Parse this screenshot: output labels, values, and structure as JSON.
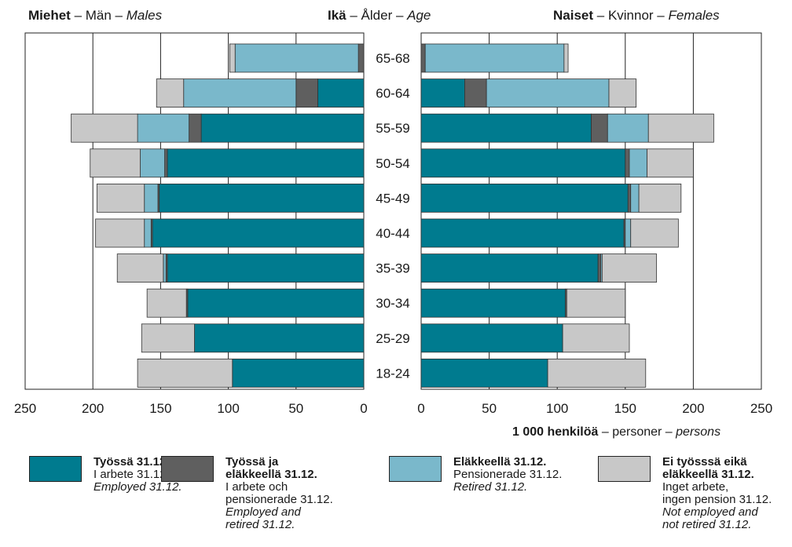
{
  "headers": {
    "left": {
      "bold": "Miehet",
      "sep1": " – ",
      "normal": "Män",
      "sep2": " – ",
      "italic": "Males"
    },
    "center": {
      "bold": "Ikä",
      "sep1": " – ",
      "normal": "Ålder",
      "sep2": " – ",
      "italic": "Age"
    },
    "right": {
      "bold": "Naiset",
      "sep1": " – ",
      "normal": "Kvinnor",
      "sep2": " – ",
      "italic": "Females"
    }
  },
  "unit_label": {
    "bold": "1 000 henkilöä",
    "sep1": " – ",
    "normal": "personer",
    "sep2": " – ",
    "italic": "persons"
  },
  "legend": [
    {
      "color": "#007b8f",
      "bold": [
        "Työssä 31.12."
      ],
      "normal": [
        "I arbete 31.12."
      ],
      "italic": [
        "Employed 31.12."
      ]
    },
    {
      "color": "#5f5f5f",
      "bold": [
        "Työssä ja",
        "eläkkeellä 31.12."
      ],
      "normal": [
        "I arbete och",
        "pensionerade 31.12."
      ],
      "italic": [
        "Employed and",
        "retired 31.12."
      ]
    },
    {
      "color": "#7ab8cb",
      "bold": [
        "Eläkkeellä 31.12."
      ],
      "normal": [
        "Pensionerade 31.12."
      ],
      "italic": [
        "Retired 31.12."
      ]
    },
    {
      "color": "#c8c8c8",
      "bold": [
        "Ei työsssä eikä",
        "eläkkeellä 31.12."
      ],
      "normal": [
        "Inget arbete,",
        "ingen pension 31.12."
      ],
      "italic": [
        "Not employed and",
        "not retired 31.12."
      ]
    }
  ],
  "chart_data": {
    "type": "bar",
    "orientation": "horizontal-population-pyramid",
    "categories": [
      "65-68",
      "60-64",
      "55-59",
      "50-54",
      "45-49",
      "40-44",
      "35-39",
      "30-34",
      "25-29",
      "18-24"
    ],
    "xlim": [
      0,
      250
    ],
    "xticks": [
      250,
      200,
      150,
      100,
      50,
      0
    ],
    "grid": true,
    "colors": [
      "#007b8f",
      "#5f5f5f",
      "#7ab8cb",
      "#c8c8c8"
    ],
    "panels": [
      {
        "side": "left",
        "series": [
          {
            "name": "Työssä 31.12.",
            "values": [
              0,
              34,
              120,
              145,
              151,
              156,
              145,
              130,
              125,
              97
            ]
          },
          {
            "name": "Työssä ja eläkkeellä 31.12.",
            "values": [
              4,
              16,
              9,
              2,
              1,
              1,
              1,
              1,
              0,
              0
            ]
          },
          {
            "name": "Eläkkeellä 31.12.",
            "values": [
              91,
              83,
              38,
              18,
              10,
              5,
              2,
              0,
              0,
              0
            ]
          },
          {
            "name": "Ei työsssä eikä eläkkeellä 31.12.",
            "values": [
              4,
              20,
              49,
              37,
              35,
              36,
              34,
              29,
              39,
              70
            ]
          }
        ]
      },
      {
        "side": "right",
        "series": [
          {
            "name": "Työssä 31.12.",
            "values": [
              0,
              32,
              125,
              150,
              152,
              149,
              130,
              106,
              104,
              93
            ]
          },
          {
            "name": "Työssä ja eläkkeellä 31.12.",
            "values": [
              3,
              16,
              12,
              3,
              2,
              1,
              2,
              1,
              0,
              0
            ]
          },
          {
            "name": "Eläkkeellä 31.12.",
            "values": [
              102,
              90,
              30,
              13,
              6,
              4,
              1,
              0,
              0,
              0
            ]
          },
          {
            "name": "Ei työsssä eikä eläkkeellä 31.12.",
            "values": [
              3,
              20,
              48,
              34,
              31,
              35,
              40,
              43,
              49,
              72
            ]
          }
        ]
      }
    ]
  }
}
